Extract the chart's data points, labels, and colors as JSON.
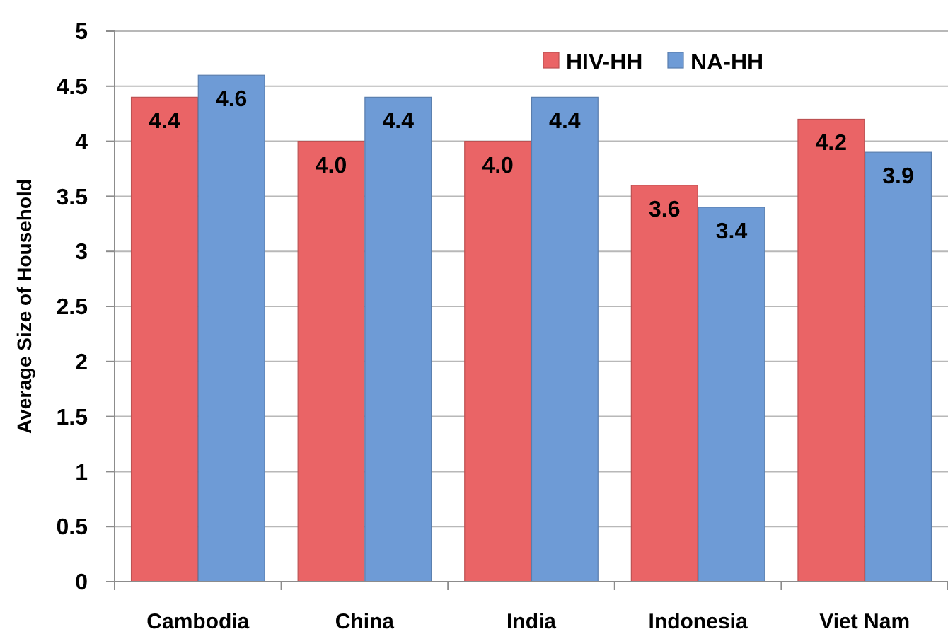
{
  "chart_data": {
    "type": "bar",
    "ylabel": "Average Size of Household",
    "categories": [
      "Cambodia",
      "China",
      "India",
      "Indonesia",
      "Viet Nam"
    ],
    "series": [
      {
        "name": "HIV-HH",
        "color": "#ea6466",
        "values": [
          4.4,
          4.0,
          4.0,
          3.6,
          4.2
        ],
        "value_labels": [
          "4.4",
          "4.0",
          "4.0",
          "3.6",
          "4.2"
        ]
      },
      {
        "name": "NA-HH",
        "color": "#6e9bd6",
        "values": [
          4.6,
          4.4,
          4.4,
          3.4,
          3.9
        ],
        "value_labels": [
          "4.6",
          "4.4",
          "4.4",
          "3.4",
          "3.9"
        ]
      }
    ],
    "ylim": [
      0,
      5
    ],
    "yticks": [
      0,
      0.5,
      1,
      1.5,
      2,
      2.5,
      3,
      3.5,
      4,
      4.5,
      5
    ],
    "grid": "y",
    "legend": "top right"
  }
}
